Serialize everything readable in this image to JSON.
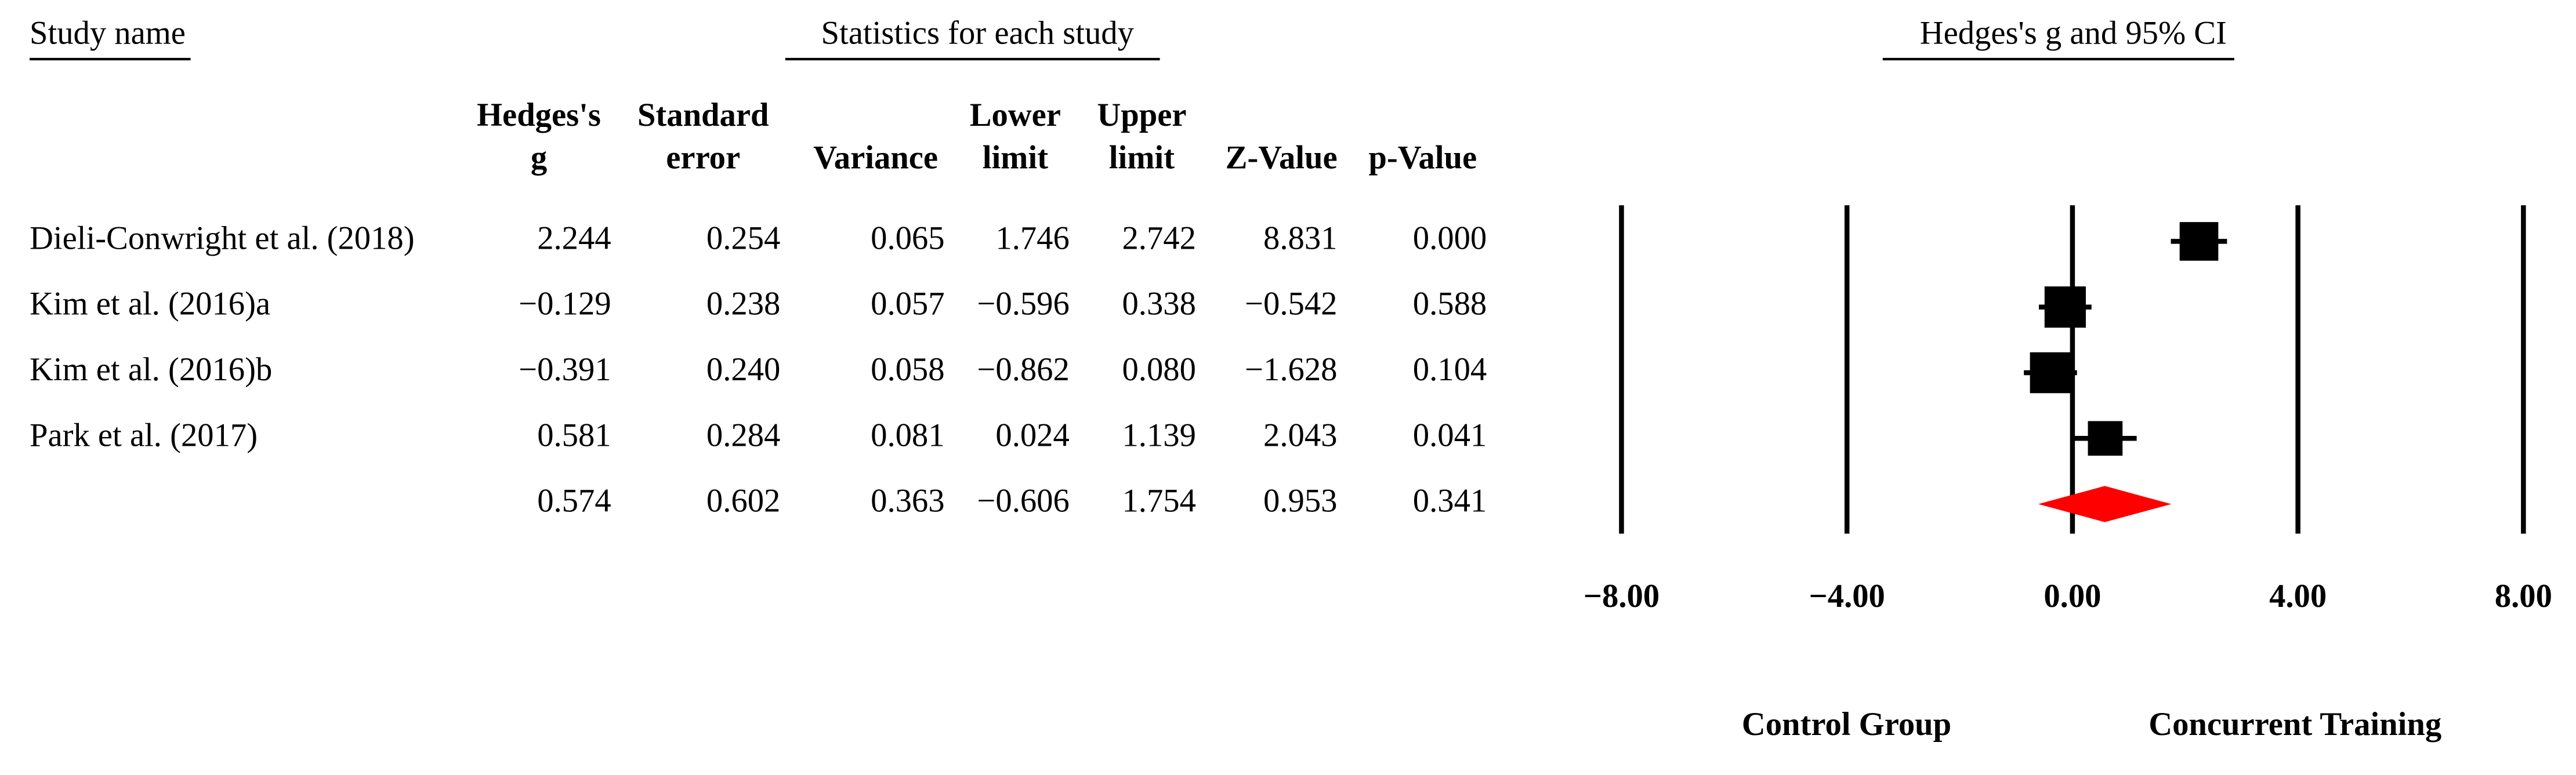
{
  "chart_data": {
    "type": "forest",
    "study_header": "Study name",
    "stats_header": "Statistics for each study",
    "plot_header": "Hedges's g and 95% CI",
    "studies": [
      "Dieli-Conwright et al. (2018)",
      "Kim et al. (2016)a",
      "Kim et al. (2016)b",
      "Park et al. (2017)",
      null
    ],
    "columns": [
      {
        "header": [
          "Hedges's",
          "g"
        ],
        "values": [
          2.244,
          -0.129,
          -0.391,
          0.581,
          0.574
        ],
        "value_labels": [
          "2.244",
          "−0.129",
          "−0.391",
          "0.581",
          "0.574"
        ]
      },
      {
        "header": [
          "Standard",
          "error"
        ],
        "values": [
          0.254,
          0.238,
          0.24,
          0.284,
          0.602
        ],
        "value_labels": [
          "0.254",
          "0.238",
          "0.240",
          "0.284",
          "0.602"
        ]
      },
      {
        "header": [
          "Variance"
        ],
        "values": [
          0.065,
          0.057,
          0.058,
          0.081,
          0.363
        ],
        "value_labels": [
          "0.065",
          "0.057",
          "0.058",
          "0.081",
          "0.363"
        ]
      },
      {
        "header": [
          "Lower",
          "limit"
        ],
        "values": [
          1.746,
          -0.596,
          -0.862,
          0.024,
          -0.606
        ],
        "value_labels": [
          "1.746",
          "−0.596",
          "−0.862",
          "0.024",
          "−0.606"
        ]
      },
      {
        "header": [
          "Upper",
          "limit"
        ],
        "values": [
          2.742,
          0.338,
          0.08,
          1.139,
          1.754
        ],
        "value_labels": [
          "2.742",
          "0.338",
          "0.080",
          "1.139",
          "1.754"
        ]
      },
      {
        "header": [
          "Z-Value"
        ],
        "values": [
          8.831,
          -0.542,
          -1.628,
          2.043,
          0.953
        ],
        "value_labels": [
          "8.831",
          "−0.542",
          "−1.628",
          "2.043",
          "0.953"
        ]
      },
      {
        "header": [
          "p-Value"
        ],
        "values": [
          0,
          0.588,
          0.104,
          0.041,
          0.341
        ],
        "value_labels": [
          "0.000",
          "0.588",
          "0.104",
          "0.041",
          "0.341"
        ]
      }
    ],
    "xlim": [
      -8,
      8
    ],
    "xticks": [
      {
        "value": -8,
        "label": "−8.00"
      },
      {
        "value": -4,
        "label": "−4.00"
      },
      {
        "value": 0,
        "label": "0.00"
      },
      {
        "value": 4,
        "label": "4.00"
      },
      {
        "value": 8,
        "label": "8.00"
      }
    ],
    "grid": true,
    "left_label": "Control Group",
    "right_label": "Concurrent Training",
    "marker_color": "#000000",
    "summary_color": "#ff0000"
  }
}
